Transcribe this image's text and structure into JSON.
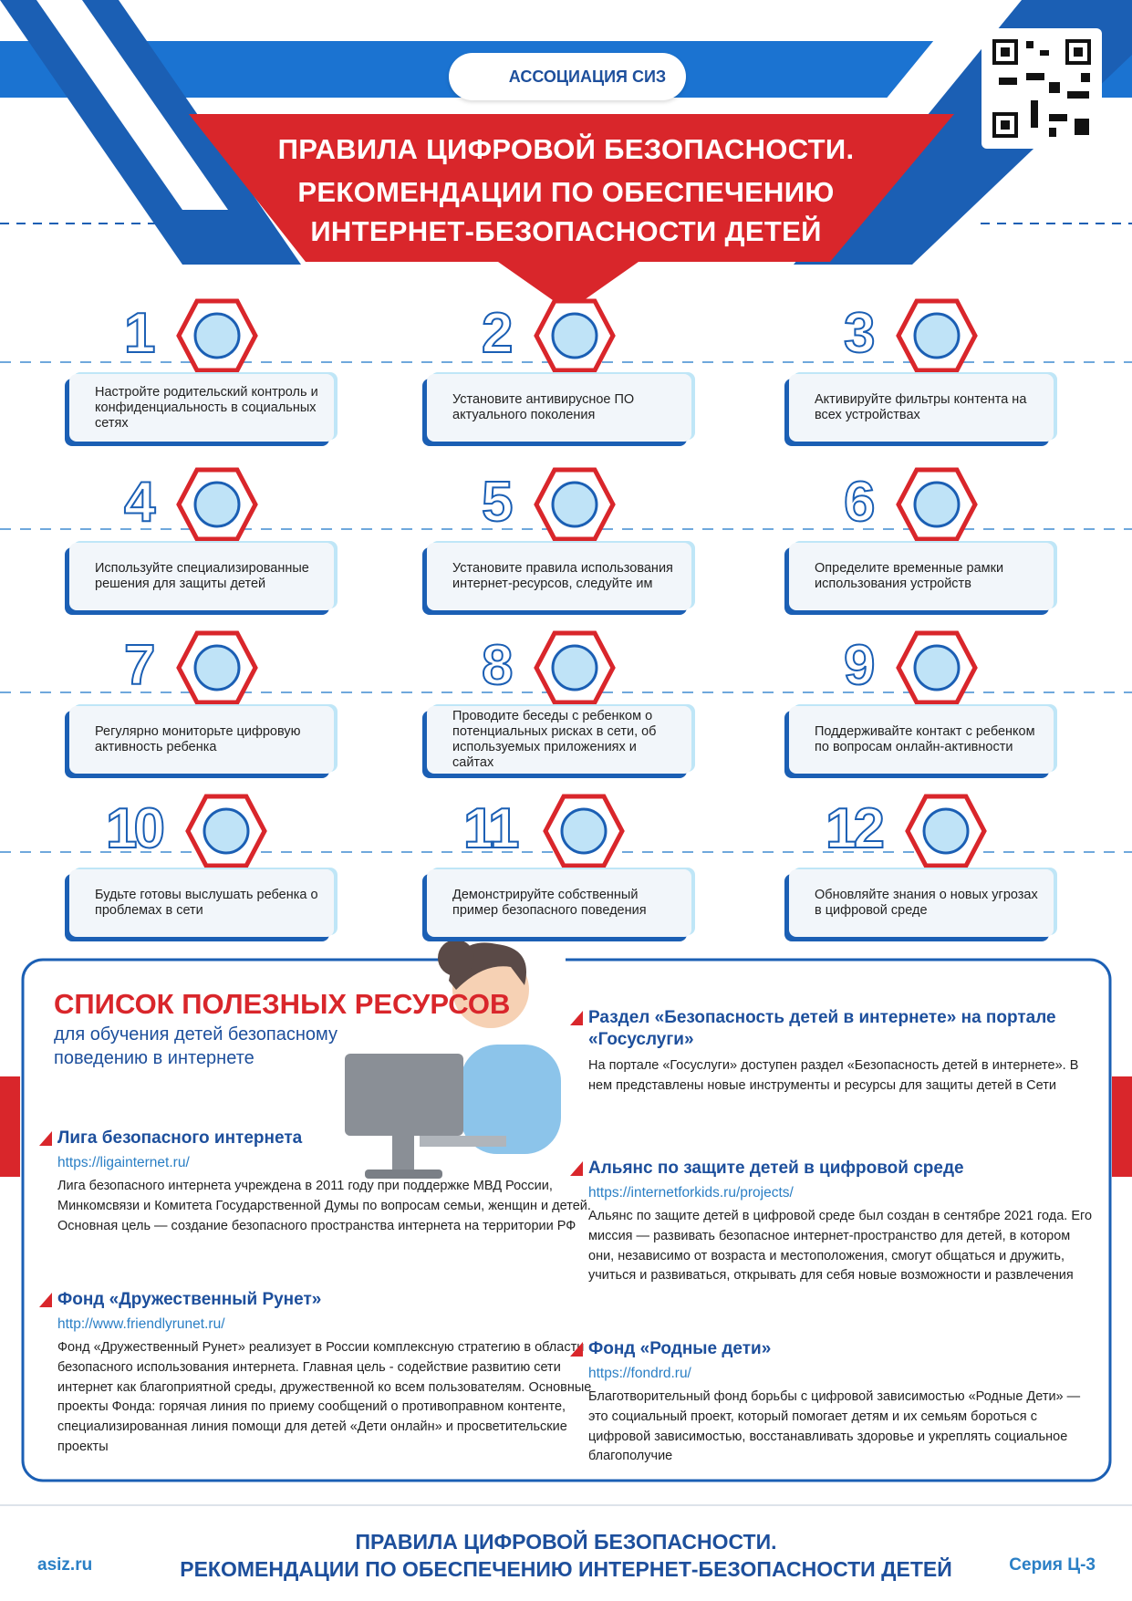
{
  "header": {
    "org": "АССОЦИАЦИЯ СИЗ",
    "title": [
      "ПРАВИЛА ЦИФРОВОЙ БЕЗОПАСНОСТИ.",
      "РЕКОМЕНДАЦИИ ПО ОБЕСПЕЧЕНИЮ",
      "ИНТЕРНЕТ-БЕЗОПАСНОСТИ ДЕТЕЙ"
    ]
  },
  "tips": [
    {
      "number": 1,
      "text": "Настройте родительский контроль и конфиденциальность в социальных сетях"
    },
    {
      "number": 2,
      "text": "Установите антивирусное ПО актуального поколения"
    },
    {
      "number": 3,
      "text": "Активируйте фильтры контента на всех устройствах"
    },
    {
      "number": 4,
      "text": "Используйте специализированные решения для защиты детей"
    },
    {
      "number": 5,
      "text": "Установите правила использования интернет-ресурсов, следуйте им"
    },
    {
      "number": 6,
      "text": "Определите временные рамки использования устройств"
    },
    {
      "number": 7,
      "text": "Регулярно мониторьте цифровую активность ребенка"
    },
    {
      "number": 8,
      "text": "Проводите беседы с ребенком о потенциальных рисках в сети, об используемых приложениях и сайтах"
    },
    {
      "number": 9,
      "text": "Поддерживайте контакт с ребенком по вопросам онлайн-активности"
    },
    {
      "number": 10,
      "text": "Будьте готовы выслушать ребенка о проблемах в сети"
    },
    {
      "number": 11,
      "text": "Демонстрируйте собственный пример безопасного поведения"
    },
    {
      "number": 12,
      "text": "Обновляйте знания о новых угрозах в цифровой среде"
    }
  ],
  "resources": {
    "title": "СПИСОК ПОЛЕЗНЫХ РЕСУРСОВ",
    "subtitle": "для обучения детей безопасному поведению в интернете",
    "items": [
      {
        "name": "Лига безопасного интернета",
        "url": "https://ligainternet.ru/",
        "description": "Лига безопасного интернета учреждена в 2011 году при поддержке МВД России, Минкомсвязи и Комитета Государственной Думы по вопросам семьи, женщин и детей. Основная цель — создание безопасного пространства интернета на территории РФ"
      },
      {
        "name": "Фонд «Дружественный Рунет»",
        "url": "http://www.friendlyrunet.ru/",
        "description": "Фонд «Дружественный Рунет» реализует в России комплексную стратегию в области безопасного использования интернета. Главная цель - содействие развитию сети интернет как благоприятной среды, дружественной ко всем пользователям. Основные проекты Фонда: горячая линия по приему сообщений о противоправном контенте, специализированная линия помощи для детей «Дети онлайн» и просветительские проекты"
      },
      {
        "name": "Раздел «Безопасность детей в интернете» на портале «Госуслуги»",
        "description": "На портале «Госуслуги» доступен раздел «Безопасность детей в интернете». В нем представлены новые инструменты и ресурсы для защиты детей в Сети"
      },
      {
        "name": "Альянс по защите детей в цифровой среде",
        "url": "https://internetforkids.ru/projects/",
        "description": "Альянс по защите детей в цифровой среде был создан в сентябре 2021 года. Его миссия — развивать безопасное интернет-пространство для детей, в котором они, независимо от возраста и местоположения, смогут общаться и дружить, учиться и развиваться, открывать для себя новые возможности и развлечения"
      },
      {
        "name": "Фонд «Родные дети»",
        "url": "https://fondrd.ru/",
        "description": "Благотворительный фонд борьбы с цифровой зависимостью «Родные Дети» — это социальный проект, который помогает детям и их семьям бороться с цифровой зависимостью, восстанавливать здоровье и укреплять социальное благополучие"
      }
    ]
  },
  "footer": {
    "title": [
      "ПРАВИЛА ЦИФРОВОЙ БЕЗОПАСНОСТИ.",
      "РЕКОМЕНДАЦИИ ПО ОБЕСПЕЧЕНИЮ ИНТЕРНЕТ-БЕЗОПАСНОСТИ ДЕТЕЙ"
    ],
    "site": "asiz.ru",
    "series": "Серия Ц-3"
  }
}
